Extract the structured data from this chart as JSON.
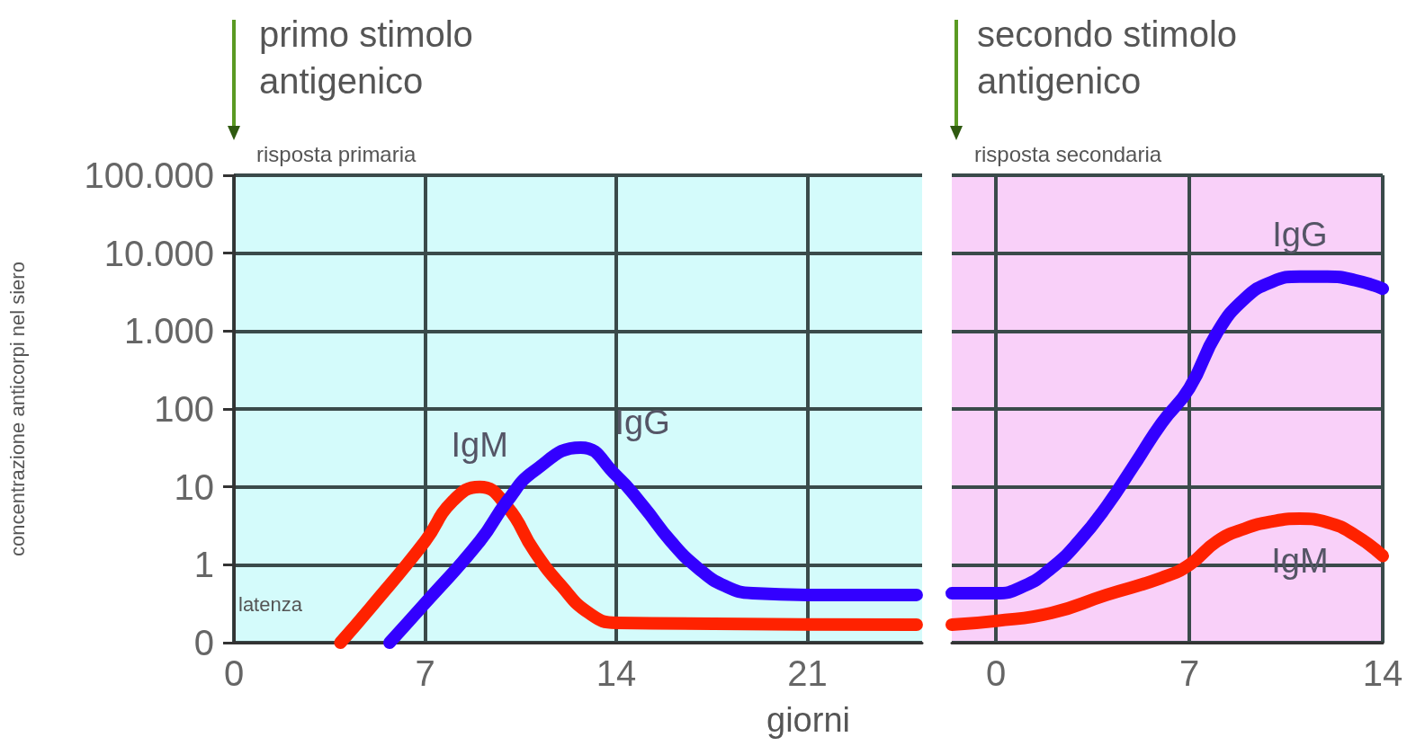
{
  "chart_data": [
    {
      "type": "line",
      "ylabel": "concentrazione anticorpi nel siero",
      "xlabel": "giorni",
      "annotations": [
        "primo stimolo antigenico",
        "risposta primaria",
        "latenza"
      ],
      "xlim": [
        0,
        25.2
      ],
      "xticks": [
        0,
        7,
        14,
        21
      ],
      "ylim": [
        0.1,
        100000
      ],
      "log": "y",
      "yticks": [
        {
          "value": 0.1,
          "label": "0"
        },
        1,
        10,
        100,
        {
          "value": 1000,
          "label": "1.000"
        },
        {
          "value": 10000,
          "label": "10.000"
        },
        {
          "value": 100000,
          "label": "100.000"
        }
      ],
      "grid": true,
      "legend": false,
      "marker": "none",
      "line_style": "solid",
      "series": [
        {
          "name": "IgM",
          "color": "#ff2200",
          "x": [
            3.9,
            5,
            7,
            8,
            9,
            10,
            11,
            12,
            13,
            14,
            25
          ],
          "values": [
            0.1,
            0.28,
            2,
            6.5,
            10,
            5.6,
            1.5,
            0.53,
            0.24,
            0.18,
            0.17
          ]
        },
        {
          "name": "IgG",
          "color": "#3300ff",
          "x": [
            5.7,
            7,
            9,
            10,
            11,
            12.7,
            14,
            15,
            16,
            17,
            18,
            19,
            21,
            25
          ],
          "values": [
            0.1,
            0.32,
            2,
            6.5,
            16,
            32,
            14,
            5.6,
            2,
            0.9,
            0.53,
            0.43,
            0.41,
            0.41
          ]
        }
      ]
    },
    {
      "type": "line",
      "annotations": [
        "secondo stimolo antigenico",
        "risposta secondaria"
      ],
      "xlim": [
        -1.6,
        14
      ],
      "xticks": [
        0,
        7,
        14
      ],
      "ylim": [
        0.1,
        100000
      ],
      "log": "y",
      "yticks": [
        {
          "value": 0.1,
          "label": null
        },
        {
          "value": 1,
          "label": null
        },
        {
          "value": 10,
          "label": null
        },
        {
          "value": 100,
          "label": null
        },
        {
          "value": 1000,
          "label": null
        },
        {
          "value": 10000,
          "label": null
        },
        {
          "value": 100000,
          "label": null
        }
      ],
      "tick_labels": "x",
      "grid": true,
      "legend": false,
      "marker": "none",
      "line_style": "solid",
      "series": [
        {
          "name": "IgM",
          "color": "#ff2200",
          "x": [
            -1.6,
            0,
            2,
            4,
            6,
            7,
            8,
            9,
            10,
            11,
            12,
            13,
            14
          ],
          "values": [
            0.17,
            0.19,
            0.24,
            0.41,
            0.68,
            1,
            2,
            2.9,
            3.6,
            3.9,
            3.5,
            2.4,
            1.3
          ]
        },
        {
          "name": "IgG",
          "color": "#3300ff",
          "x": [
            -1.6,
            0,
            1,
            2,
            3,
            4,
            5,
            6,
            7,
            8,
            9,
            10,
            11,
            12,
            13,
            14
          ],
          "values": [
            0.43,
            0.43,
            0.53,
            0.9,
            2,
            5.6,
            19,
            66,
            185,
            950,
            2600,
            4300,
            5000,
            5000,
            4500,
            3500
          ]
        }
      ]
    }
  ]
}
